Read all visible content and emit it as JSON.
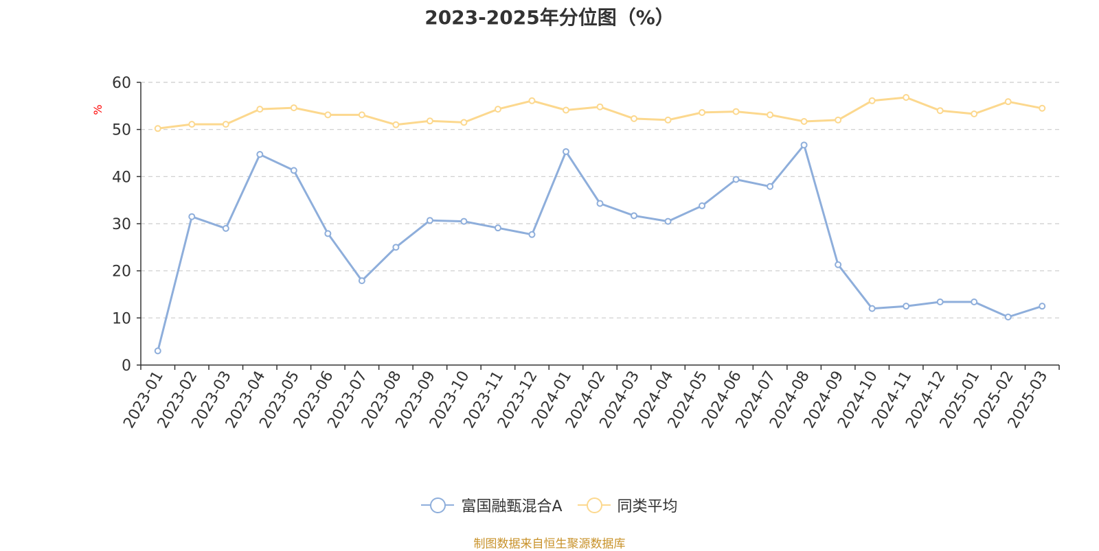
{
  "page": {
    "title": "2023-2025年分位图（%）",
    "source_note": "制图数据来自恒生聚源数据库"
  },
  "chart_data": {
    "type": "line",
    "title": "2023-2025年分位图（%）",
    "xlabel": "",
    "ylabel": "%",
    "ylim": [
      0,
      60
    ],
    "yticks": [
      0,
      10,
      20,
      30,
      40,
      50,
      60
    ],
    "grid": true,
    "legend_position": "bottom-center",
    "categories": [
      "2023-01",
      "2023-02",
      "2023-03",
      "2023-04",
      "2023-05",
      "2023-06",
      "2023-07",
      "2023-08",
      "2023-09",
      "2023-10",
      "2023-11",
      "2023-12",
      "2024-01",
      "2024-02",
      "2024-03",
      "2024-04",
      "2024-05",
      "2024-06",
      "2024-07",
      "2024-08",
      "2024-09",
      "2024-10",
      "2024-11",
      "2024-12",
      "2025-01",
      "2025-02",
      "2025-03"
    ],
    "series": [
      {
        "name": "富国融甄混合A",
        "color": "#8eaedb",
        "values": [
          3,
          31.5,
          29,
          44.7,
          41.3,
          27.9,
          17.9,
          25,
          30.7,
          30.5,
          29.1,
          27.7,
          45.3,
          34.3,
          31.7,
          30.5,
          33.8,
          39.4,
          37.9,
          46.7,
          21.3,
          12,
          12.5,
          13.4,
          13.4,
          10.2,
          12.5
        ]
      },
      {
        "name": "同类平均",
        "color": "#fcd88e",
        "values": [
          50.2,
          51.1,
          51.1,
          54.3,
          54.6,
          53.1,
          53.1,
          51,
          51.8,
          51.5,
          54.3,
          56.1,
          54.1,
          54.8,
          52.3,
          52,
          53.6,
          53.8,
          53.1,
          51.7,
          52,
          56.1,
          56.8,
          54,
          53.3,
          55.9,
          54.5
        ]
      }
    ]
  },
  "colors": {
    "axis": "#333333",
    "grid": "#cccccc",
    "ylabel": "#ff0000",
    "source": "#c8922a"
  }
}
